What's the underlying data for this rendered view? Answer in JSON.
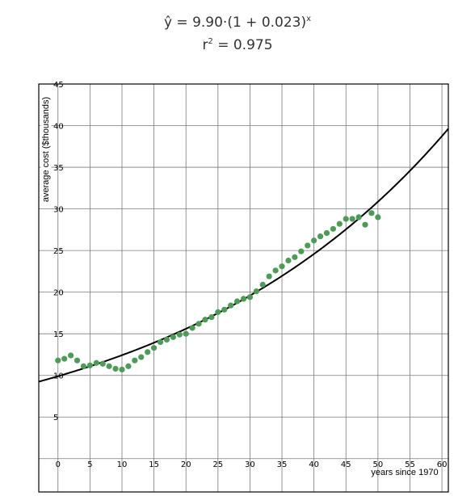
{
  "equation": {
    "line1_main": "ŷ = 9.90·(1 + 0.023)",
    "line1_sup": "x",
    "line2_main": "r",
    "line2_sup": "2",
    "line2_rest": " = 0.975"
  },
  "chart_data": {
    "type": "scatter",
    "title": "",
    "xlabel": "years since 1970",
    "ylabel": "average cost ($thousands)",
    "xlim": [
      -3,
      61
    ],
    "ylim": [
      -4,
      45
    ],
    "grid": true,
    "x_ticks": [
      0,
      5,
      10,
      15,
      20,
      25,
      30,
      35,
      40,
      45,
      50,
      55,
      60
    ],
    "y_ticks": [
      5,
      10,
      15,
      20,
      25,
      30,
      35,
      40,
      45
    ],
    "point_color": "#4e9a57",
    "curve_color": "#000000",
    "points": [
      [
        0,
        11.8
      ],
      [
        1,
        12.0
      ],
      [
        2,
        12.4
      ],
      [
        3,
        11.8
      ],
      [
        4,
        11.1
      ],
      [
        5,
        11.2
      ],
      [
        6,
        11.5
      ],
      [
        7,
        11.4
      ],
      [
        8,
        11.1
      ],
      [
        9,
        10.8
      ],
      [
        10,
        10.7
      ],
      [
        11,
        11.1
      ],
      [
        12,
        11.8
      ],
      [
        13,
        12.2
      ],
      [
        14,
        12.8
      ],
      [
        15,
        13.3
      ],
      [
        16,
        14.0
      ],
      [
        17,
        14.3
      ],
      [
        18,
        14.6
      ],
      [
        19,
        14.9
      ],
      [
        20,
        15.0
      ],
      [
        21,
        15.7
      ],
      [
        22,
        16.2
      ],
      [
        23,
        16.7
      ],
      [
        24,
        17.0
      ],
      [
        25,
        17.6
      ],
      [
        26,
        17.9
      ],
      [
        27,
        18.4
      ],
      [
        28,
        18.9
      ],
      [
        29,
        19.2
      ],
      [
        30,
        19.4
      ],
      [
        31,
        20.1
      ],
      [
        32,
        20.9
      ],
      [
        33,
        21.9
      ],
      [
        34,
        22.6
      ],
      [
        35,
        23.1
      ],
      [
        36,
        23.8
      ],
      [
        37,
        24.2
      ],
      [
        38,
        24.9
      ],
      [
        39,
        25.6
      ],
      [
        40,
        26.2
      ],
      [
        41,
        26.7
      ],
      [
        42,
        27.1
      ],
      [
        43,
        27.6
      ],
      [
        44,
        28.2
      ],
      [
        45,
        28.8
      ],
      [
        46,
        28.8
      ],
      [
        47,
        29.0
      ],
      [
        48,
        28.1
      ],
      [
        49,
        29.5
      ],
      [
        50,
        29.0
      ]
    ],
    "model": {
      "a": 9.9,
      "b": 1.023
    }
  }
}
